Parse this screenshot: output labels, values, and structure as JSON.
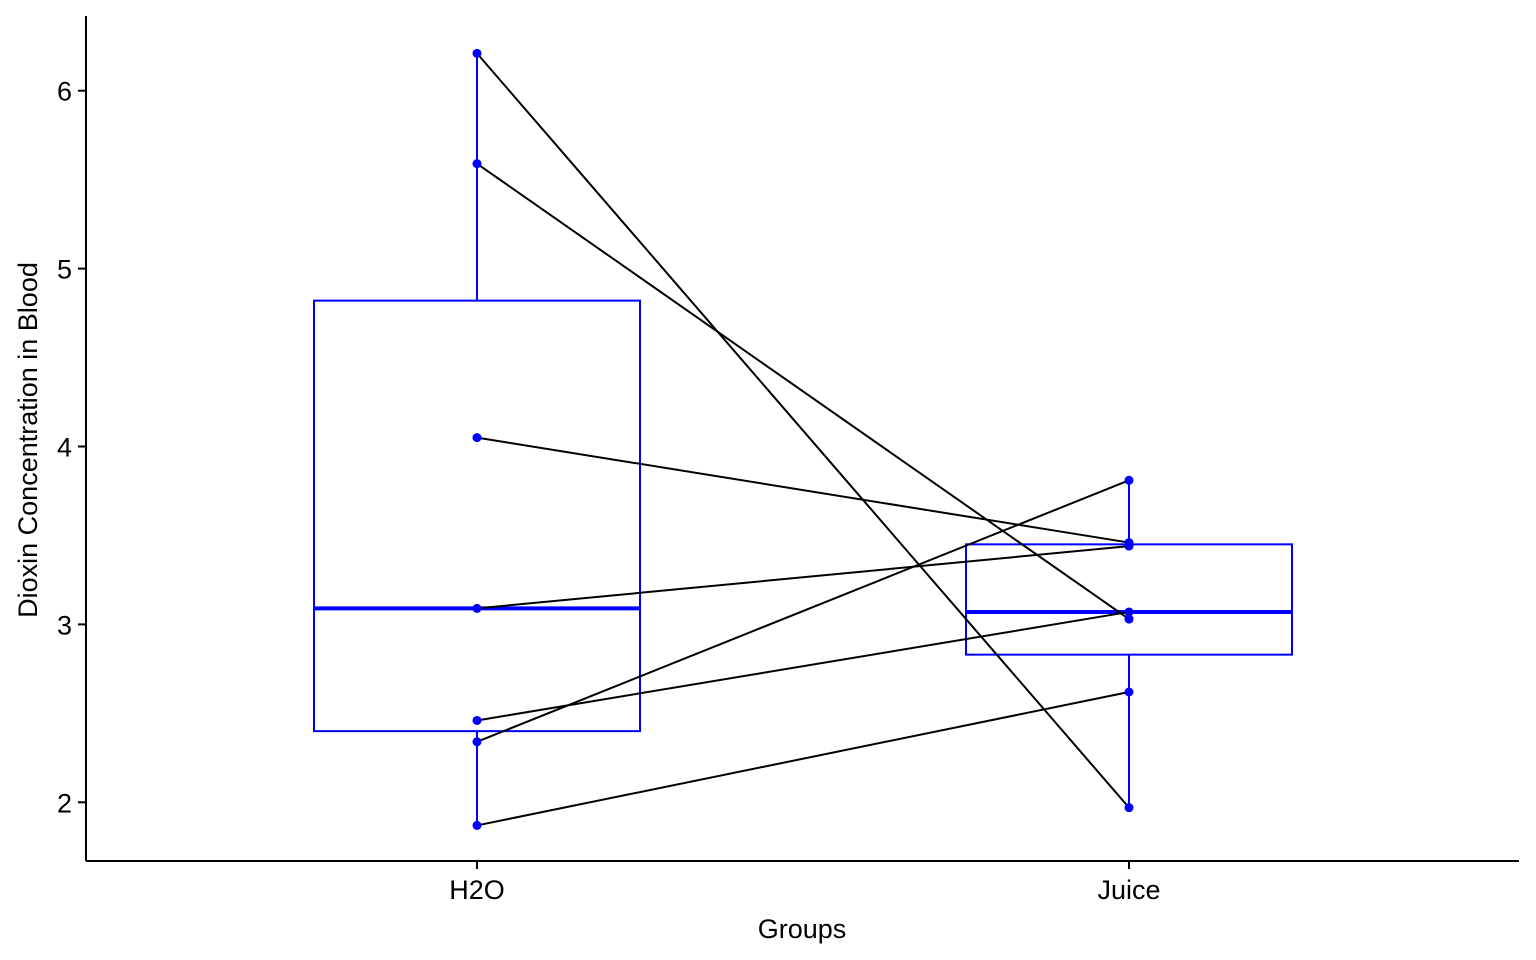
{
  "chart_data": {
    "type": "boxplot-paired",
    "xlabel": "Groups",
    "ylabel": "Dioxin Concentration in Blood",
    "categories": [
      "H2O",
      "Juice"
    ],
    "ylim": [
      1.67,
      6.42
    ],
    "yticks": [
      2,
      3,
      4,
      5,
      6
    ],
    "grid": false,
    "box_color": "#0000ff",
    "line_color": "#000000",
    "boxes": [
      {
        "group": "H2O",
        "whisker_low": 1.87,
        "q1": 2.4,
        "median": 3.09,
        "q3": 4.82,
        "whisker_high": 6.21
      },
      {
        "group": "Juice",
        "whisker_low": 1.97,
        "q1": 2.83,
        "median": 3.07,
        "q3": 3.45,
        "whisker_high": 3.81
      }
    ],
    "pairs": [
      {
        "H2O": 6.21,
        "Juice": 1.97
      },
      {
        "H2O": 5.59,
        "Juice": 3.03
      },
      {
        "H2O": 4.05,
        "Juice": 3.46
      },
      {
        "H2O": 3.09,
        "Juice": 3.44
      },
      {
        "H2O": 2.46,
        "Juice": 3.07
      },
      {
        "H2O": 2.34,
        "Juice": 3.81
      },
      {
        "H2O": 1.87,
        "Juice": 2.62
      }
    ]
  }
}
